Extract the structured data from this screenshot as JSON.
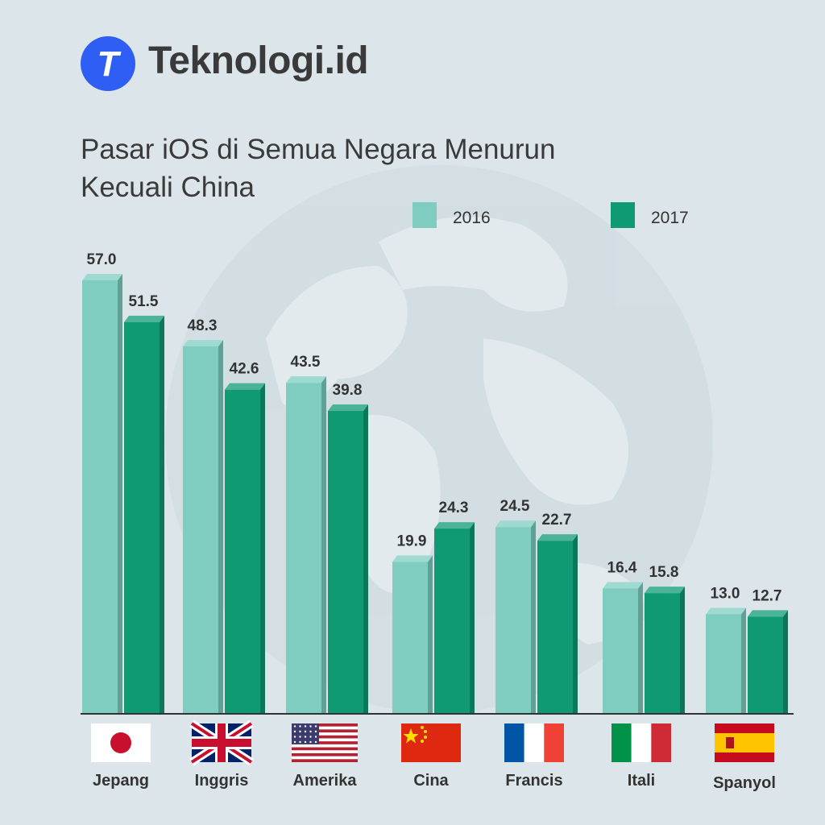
{
  "brand": {
    "logo_letter": "T",
    "name": "Teknologi.id",
    "colors": {
      "logo_bg": "#2f5ef5",
      "logo_fg": "#ffffff"
    }
  },
  "chart_data": {
    "type": "bar",
    "title": [
      "Pasar iOS di Semua Negara Menurun",
      "Kecuali China"
    ],
    "categories": [
      "Jepang",
      "Inggris",
      "Amerika",
      "Cina",
      "Francis",
      "Itali",
      "Spanyol"
    ],
    "flags": [
      "japan-flag-icon",
      "uk-flag-icon",
      "usa-flag-icon",
      "china-flag-icon",
      "france-flag-icon",
      "italy-flag-icon",
      "spain-flag-icon"
    ],
    "series": [
      {
        "name": "2016",
        "values": [
          57.0,
          48.3,
          43.5,
          19.9,
          24.5,
          16.4,
          13.0
        ],
        "color": "#7ecdc0"
      },
      {
        "name": "2017",
        "values": [
          51.5,
          42.6,
          39.8,
          24.3,
          22.7,
          15.8,
          12.7
        ],
        "color": "#0f9a73"
      }
    ],
    "ylim": [
      0,
      57
    ],
    "legend": "top-right",
    "grid": false,
    "xlabel": "",
    "ylabel": ""
  }
}
